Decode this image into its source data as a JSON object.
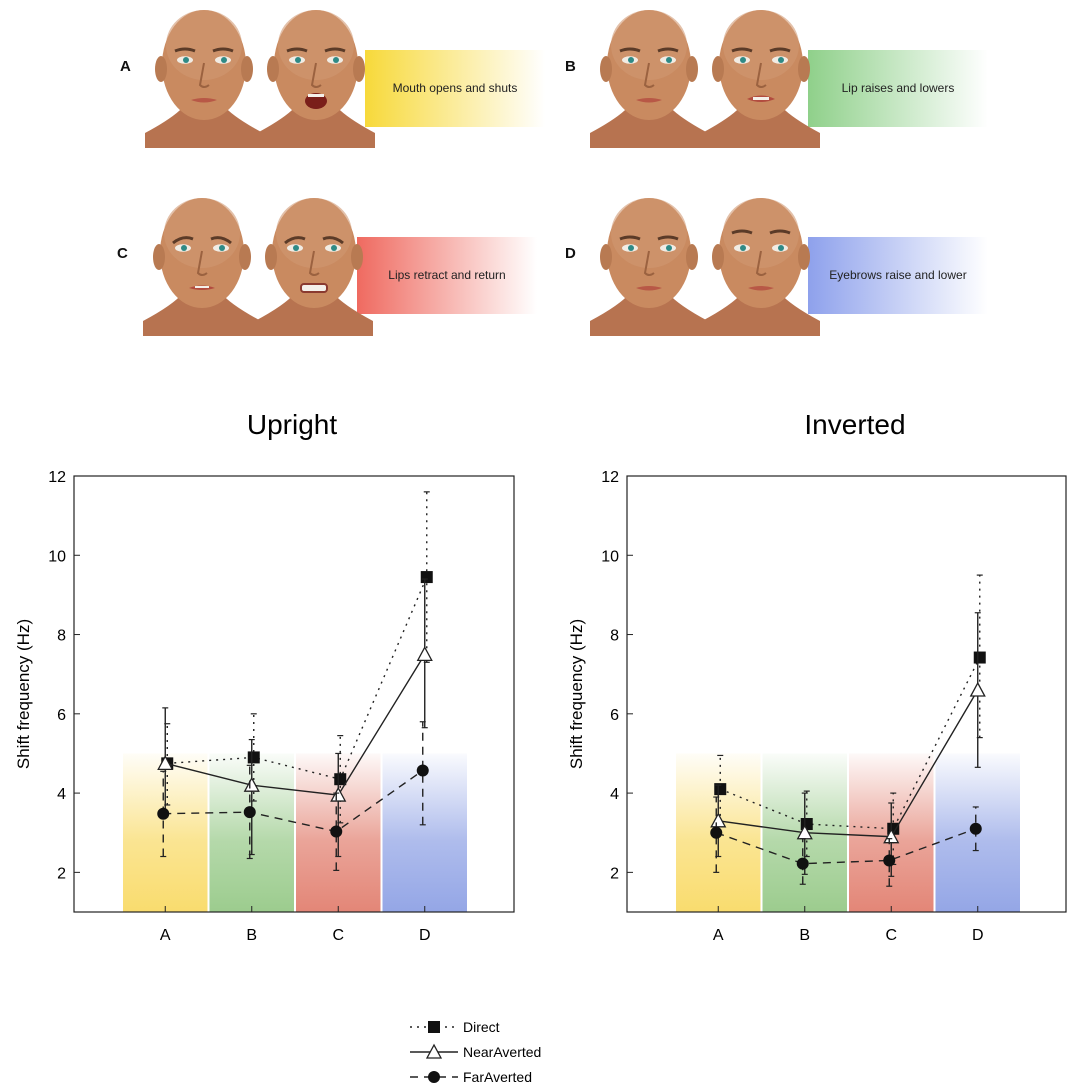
{
  "panels": [
    {
      "letter": "A",
      "caption": "Mouth opens and shuts",
      "color": "#f7d93a",
      "expression": "mouth-open"
    },
    {
      "letter": "B",
      "caption": "Lip raises and lowers",
      "color": "#8fd08a",
      "expression": "lip-raise"
    },
    {
      "letter": "C",
      "caption": "Lips retract and return",
      "color": "#ef6a60",
      "expression": "lips-retract"
    },
    {
      "letter": "D",
      "caption": "Eyebrows raise and lower",
      "color": "#8ea1ec",
      "expression": "eyebrows-raise"
    }
  ],
  "chart_data": [
    {
      "type": "line",
      "title": "Upright",
      "ylabel": "Shift frequency (Hz)",
      "xlabel": "",
      "categories": [
        "A",
        "B",
        "C",
        "D"
      ],
      "ylim": [
        1,
        12
      ],
      "yticks": [
        2,
        4,
        6,
        8,
        10,
        12
      ],
      "grid": false,
      "background_bands": [
        "#f9dc6e",
        "#9ccc8e",
        "#e38677",
        "#94a6e6"
      ],
      "band_top": 5,
      "series": [
        {
          "name": "Direct",
          "style": "dotted",
          "marker": "square",
          "values": [
            4.75,
            4.9,
            4.35,
            9.45
          ],
          "err_low": [
            3.7,
            3.8,
            3.25,
            7.3
          ],
          "err_high": [
            5.75,
            6.0,
            5.45,
            11.6
          ]
        },
        {
          "name": "NearAverted",
          "style": "solid",
          "marker": "triangle-open",
          "values": [
            4.75,
            4.2,
            3.95,
            7.5
          ],
          "err_low": [
            3.4,
            2.45,
            2.4,
            5.65
          ],
          "err_high": [
            6.15,
            5.35,
            5.0,
            9.4
          ]
        },
        {
          "name": "FarAverted",
          "style": "dashed",
          "marker": "circle",
          "values": [
            3.48,
            3.52,
            3.03,
            4.57
          ],
          "err_low": [
            2.4,
            2.35,
            2.05,
            3.2
          ],
          "err_high": [
            4.55,
            4.7,
            4.0,
            5.8
          ]
        }
      ]
    },
    {
      "type": "line",
      "title": "Inverted",
      "ylabel": "Shift frequency (Hz)",
      "xlabel": "",
      "categories": [
        "A",
        "B",
        "C",
        "D"
      ],
      "ylim": [
        1,
        12
      ],
      "yticks": [
        2,
        4,
        6,
        8,
        10,
        12
      ],
      "grid": false,
      "background_bands": [
        "#f9dc6e",
        "#9ccc8e",
        "#e38677",
        "#94a6e6"
      ],
      "band_top": 5,
      "series": [
        {
          "name": "Direct",
          "style": "dotted",
          "marker": "square",
          "values": [
            4.1,
            3.22,
            3.1,
            7.42
          ],
          "err_low": [
            3.25,
            2.4,
            2.2,
            5.4
          ],
          "err_high": [
            4.95,
            4.05,
            4.0,
            9.5
          ]
        },
        {
          "name": "NearAverted",
          "style": "solid",
          "marker": "triangle-open",
          "values": [
            3.3,
            3.0,
            2.9,
            6.6
          ],
          "err_low": [
            2.4,
            1.95,
            1.9,
            4.65
          ],
          "err_high": [
            4.2,
            4.0,
            3.75,
            8.55
          ]
        },
        {
          "name": "FarAverted",
          "style": "dashed",
          "marker": "circle",
          "values": [
            3.0,
            2.22,
            2.3,
            3.1
          ],
          "err_low": [
            2.0,
            1.7,
            1.65,
            2.55
          ],
          "err_high": [
            3.9,
            2.85,
            2.85,
            3.65
          ]
        }
      ]
    }
  ],
  "legend": {
    "placement": "bottom-center",
    "entries": [
      "Direct",
      "NearAverted",
      "FarAverted"
    ]
  }
}
